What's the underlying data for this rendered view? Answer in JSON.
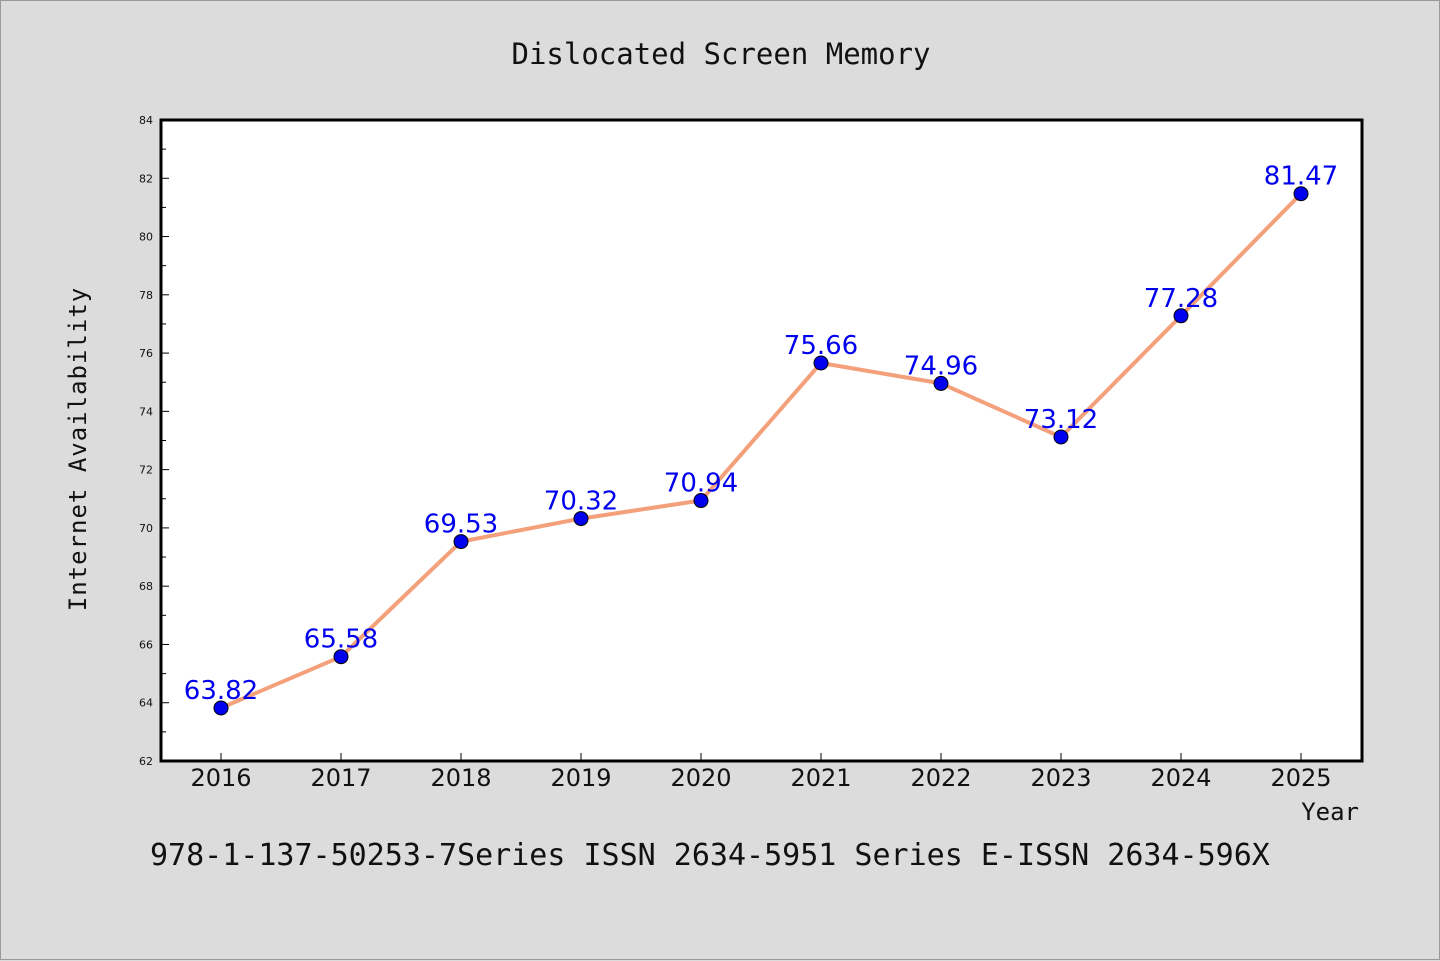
{
  "chart_data": {
    "type": "line",
    "title": "Dislocated Screen Memory",
    "xlabel": "Year",
    "ylabel": "Internet Availability",
    "categories": [
      "2016",
      "2017",
      "2018",
      "2019",
      "2020",
      "2021",
      "2022",
      "2023",
      "2024",
      "2025"
    ],
    "series": [
      {
        "values": [
          63.82,
          65.58,
          69.53,
          70.32,
          70.94,
          75.66,
          74.96,
          73.12,
          77.28,
          81.47
        ],
        "line_color": "#f4a07a",
        "marker_color": "#0000ee"
      }
    ],
    "data_labels": [
      "63.82",
      "65.58",
      "69.53",
      "70.32",
      "70.94",
      "75.66",
      "74.96",
      "73.12",
      "77.28",
      "81.47"
    ],
    "ylim": [
      62,
      84
    ],
    "yticks": [
      "62",
      "64",
      "66",
      "68",
      "70",
      "72",
      "74",
      "76",
      "78",
      "80",
      "82",
      "84"
    ],
    "grid": false,
    "legend": "none"
  },
  "footer": {
    "text": "978-1-137-50253-7Series ISSN 2634-5951 Series E-ISSN 2634-596X"
  }
}
